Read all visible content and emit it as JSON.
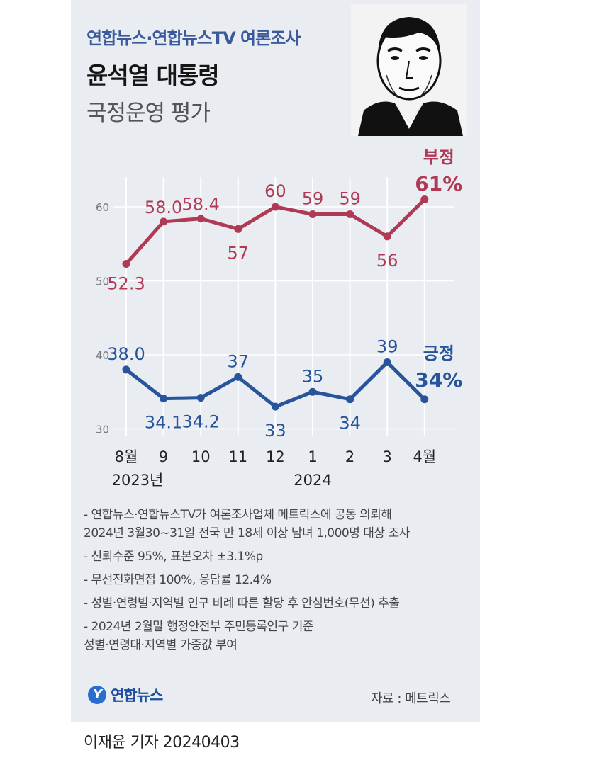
{
  "header": {
    "subheading": "연합뉴스·연합뉴스TV 여론조사",
    "title": "윤석열 대통령",
    "subtitle": "국정운영 평가"
  },
  "colors": {
    "negative": "#b03a55",
    "positive": "#27549a",
    "card": "#e9edf2",
    "grid": "#ffffff"
  },
  "chart_data": {
    "type": "line",
    "categories": [
      "8월",
      "9",
      "10",
      "11",
      "12",
      "1",
      "2",
      "3",
      "4월"
    ],
    "year_labels": [
      {
        "text": "2023년",
        "at": 0
      },
      {
        "text": "2024",
        "at": 5
      }
    ],
    "yticks": [
      30,
      40,
      50,
      60
    ],
    "ylim": [
      29,
      64
    ],
    "grid": true,
    "series": [
      {
        "name": "부정",
        "end_label": "61%",
        "values": [
          52.3,
          58.0,
          58.4,
          57,
          60,
          59,
          59,
          56,
          61
        ],
        "labels": [
          "52.3",
          "58.0",
          "58.4",
          "57",
          "60",
          "59",
          "59",
          "56",
          ""
        ]
      },
      {
        "name": "긍정",
        "end_label": "34%",
        "values": [
          38.0,
          34.1,
          34.2,
          37,
          33,
          35,
          34,
          39,
          34
        ],
        "labels": [
          "38.0",
          "34.1",
          "34.2",
          "37",
          "33",
          "35",
          "34",
          "39",
          ""
        ]
      }
    ]
  },
  "notes": [
    "- 연합뉴스·연합뉴스TV가 여론조사업체 메트릭스에 공동 의뢰해",
    "  2024년 3월30~31일 전국 만 18세 이상 남녀 1,000명 대상 조사",
    "- 신뢰수준 95%, 표본오차 ±3.1%p",
    "- 무선전화면접 100%, 응답률 12.4%",
    "- 성별·연령별·지역별 인구 비례 따른 할당 후 안심번호(무선) 추출",
    "- 2024년 2월말 행정안전부 주민등록인구 기준",
    "  성별·연령대·지역별 가중값 부여"
  ],
  "footer": {
    "logo_mark": "Y",
    "logo_text": "연합뉴스",
    "source": "자료 : 메트릭스",
    "byline": "이재윤 기자 20240403"
  }
}
